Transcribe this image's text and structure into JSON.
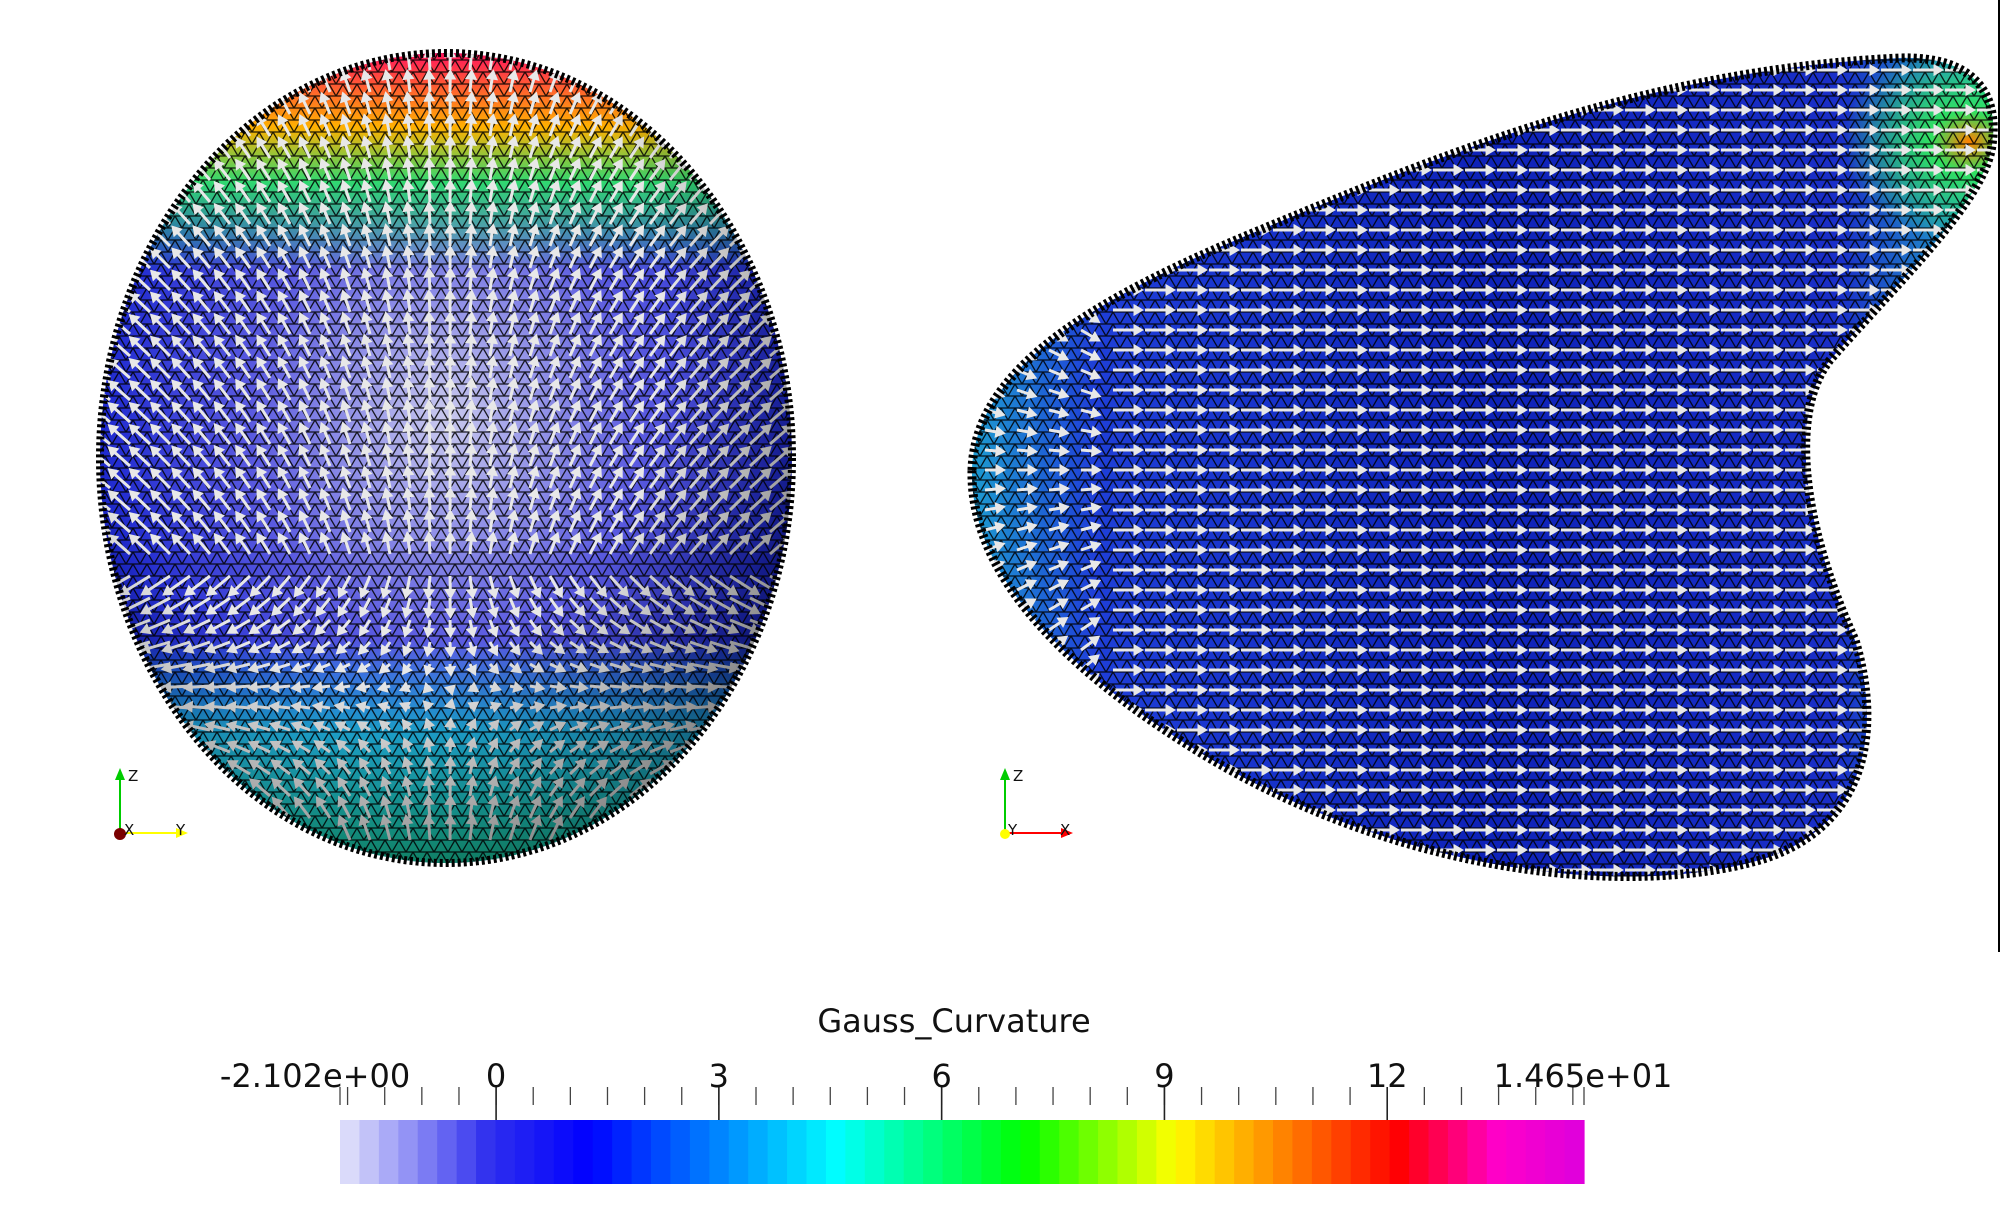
{
  "colorbar": {
    "title": "Gauss_Curvature",
    "min": -2.102,
    "max": 14.65,
    "min_label": "-2.102e+00",
    "max_label": "1.465e+01",
    "ticks": [
      {
        "value": 0,
        "label": "0"
      },
      {
        "value": 3,
        "label": "3"
      },
      {
        "value": 6,
        "label": "6"
      },
      {
        "value": 9,
        "label": "9"
      },
      {
        "value": 12,
        "label": "12"
      }
    ],
    "colormap": [
      "#e6e6fb",
      "#2f2fee",
      "#0000ff",
      "#00ffff",
      "#00ff00",
      "#ffff00",
      "#ff8000",
      "#ff0000",
      "#ff00c8",
      "#dd00dd"
    ],
    "colormap_stops": [
      0,
      0.12,
      0.2,
      0.4,
      0.55,
      0.67,
      0.76,
      0.85,
      0.93,
      1
    ]
  },
  "views": [
    {
      "name": "front",
      "axes": {
        "up": "Z",
        "right": "Y",
        "depth": "X"
      },
      "axis_colors": {
        "Z": "#00cc00",
        "Y": "#ffff00",
        "X": "#7a0000"
      }
    },
    {
      "name": "side",
      "axes": {
        "up": "Z",
        "right": "X",
        "depth": "Y"
      },
      "axis_colors": {
        "Z": "#00cc00",
        "X": "#ff0000",
        "Y": "#ffff00"
      }
    }
  ],
  "mesh_color": "#000000",
  "arrow_color": "#e8e8e8"
}
